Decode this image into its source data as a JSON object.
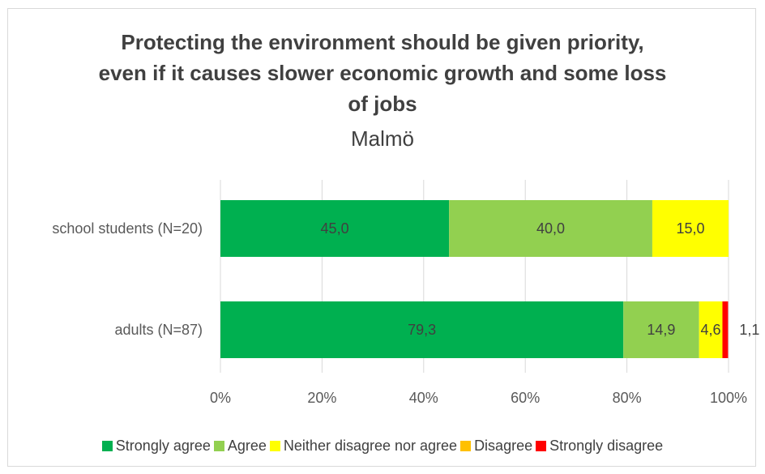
{
  "chart_data": {
    "type": "bar",
    "orientation": "horizontal",
    "stacked": true,
    "title_lines": [
      "Protecting the environment should be given priority,",
      "even if it causes slower economic growth and some loss",
      "of jobs"
    ],
    "subtitle": "Malmö",
    "categories": [
      "school students (N=20)",
      "adults (N=87)"
    ],
    "series": [
      {
        "name": "Strongly agree",
        "color": "#00b050",
        "values": [
          45.0,
          79.3
        ],
        "labels": [
          "45,0",
          "79,3"
        ]
      },
      {
        "name": "Agree",
        "color": "#92d050",
        "values": [
          40.0,
          14.9
        ],
        "labels": [
          "40,0",
          "14,9"
        ]
      },
      {
        "name": "Neither disagree nor agree",
        "color": "#ffff00",
        "values": [
          15.0,
          4.6
        ],
        "labels": [
          "15,0",
          "4,6"
        ]
      },
      {
        "name": "Disagree",
        "color": "#ffc000",
        "values": [
          0,
          0
        ],
        "labels": [
          "",
          ""
        ]
      },
      {
        "name": "Strongly disagree",
        "color": "#ff0000",
        "values": [
          0,
          1.1
        ],
        "labels": [
          "",
          "1,1"
        ]
      }
    ],
    "xlim": [
      0,
      100
    ],
    "x_ticks": [
      "0%",
      "20%",
      "40%",
      "60%",
      "80%",
      "100%"
    ],
    "grid": true,
    "legend_position": "bottom"
  }
}
